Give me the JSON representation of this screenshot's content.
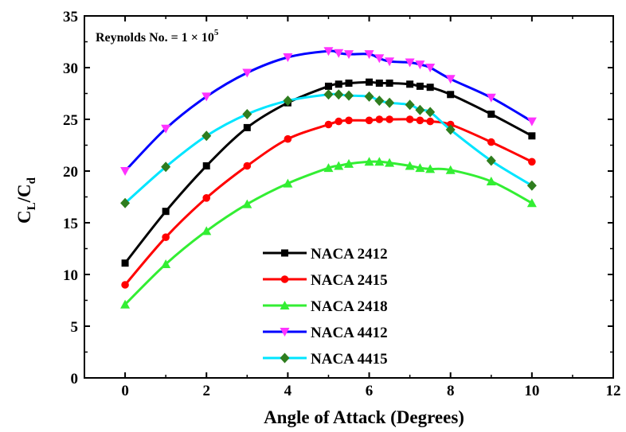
{
  "chart_data": {
    "type": "line",
    "title": "",
    "xlabel": "Angle of Attack (Degrees)",
    "ylabel_main": "C",
    "ylabel_sub1": "L",
    "ylabel_slash": "/C",
    "ylabel_sub2": "d",
    "annotation_prefix": "Reynolds No. = 1 × 10",
    "annotation_exp": "5",
    "xlim": [
      -1,
      12
    ],
    "ylim": [
      0,
      35
    ],
    "xticks": [
      "0",
      "2",
      "4",
      "6",
      "8",
      "10",
      "12"
    ],
    "yticks": [
      "0",
      "5",
      "10",
      "15",
      "20",
      "25",
      "30",
      "35"
    ],
    "grid": false,
    "legend_position": "bottom-center",
    "series": [
      {
        "name": "NACA 2412",
        "color": "#000000",
        "marker": "square",
        "x": [
          0,
          1,
          2,
          3,
          4,
          5,
          5.25,
          5.5,
          6,
          6.25,
          6.5,
          7,
          7.25,
          7.5,
          8,
          9,
          10
        ],
        "y": [
          11.1,
          16.1,
          20.5,
          24.2,
          26.6,
          28.2,
          28.4,
          28.5,
          28.6,
          28.5,
          28.5,
          28.4,
          28.2,
          28.1,
          27.4,
          25.5,
          23.4
        ]
      },
      {
        "name": "NACA 2415",
        "color": "#ff0000",
        "marker": "circle",
        "x": [
          0,
          1,
          2,
          3,
          4,
          5,
          5.25,
          5.5,
          6,
          6.25,
          6.5,
          7,
          7.25,
          7.5,
          8,
          9,
          10
        ],
        "y": [
          9.0,
          13.6,
          17.4,
          20.5,
          23.1,
          24.5,
          24.8,
          24.9,
          24.9,
          25.0,
          25.0,
          25.0,
          24.9,
          24.8,
          24.5,
          22.8,
          20.9
        ]
      },
      {
        "name": "NACA 2418",
        "color": "#33ee33",
        "marker": "triangle-up",
        "x": [
          0,
          1,
          2,
          3,
          4,
          5,
          5.25,
          5.5,
          6,
          6.25,
          6.5,
          7,
          7.25,
          7.5,
          8,
          9,
          10
        ],
        "y": [
          7.1,
          11.0,
          14.2,
          16.8,
          18.8,
          20.3,
          20.5,
          20.7,
          20.9,
          20.9,
          20.8,
          20.5,
          20.3,
          20.2,
          20.1,
          19.0,
          16.9
        ]
      },
      {
        "name": "NACA 4412",
        "color": "#0000ff",
        "marker": "triangle-down",
        "marker_color": "#ff33ff",
        "x": [
          0,
          1,
          2,
          3,
          4,
          5,
          5.25,
          5.5,
          6,
          6.25,
          6.5,
          7,
          7.25,
          7.5,
          8,
          9,
          10
        ],
        "y": [
          20.0,
          24.1,
          27.2,
          29.5,
          31.0,
          31.6,
          31.4,
          31.3,
          31.3,
          30.9,
          30.6,
          30.5,
          30.3,
          30.0,
          28.9,
          27.1,
          24.8
        ]
      },
      {
        "name": "NACA 4415",
        "color": "#00e5ff",
        "marker": "diamond",
        "marker_color": "#2e7d1e",
        "x": [
          0,
          1,
          2,
          3,
          4,
          5,
          5.25,
          5.5,
          6,
          6.25,
          6.5,
          7,
          7.25,
          7.5,
          8,
          9,
          10
        ],
        "y": [
          16.9,
          20.4,
          23.4,
          25.5,
          26.8,
          27.4,
          27.4,
          27.3,
          27.2,
          26.8,
          26.6,
          26.4,
          25.9,
          25.7,
          24.0,
          21.0,
          18.6
        ]
      }
    ]
  }
}
